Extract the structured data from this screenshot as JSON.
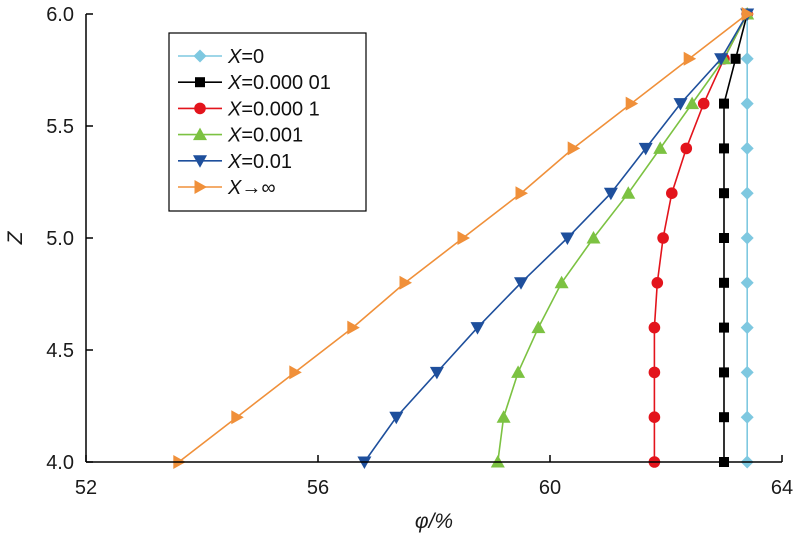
{
  "chart_data": {
    "type": "line",
    "title": "",
    "xlabel": "φ/%",
    "ylabel": "Z",
    "xlim": [
      52,
      64
    ],
    "ylim": [
      4.0,
      6.0
    ],
    "xticks": [
      52,
      56,
      60,
      64
    ],
    "xtick_labels": [
      "52",
      "56",
      "60",
      "64"
    ],
    "yticks": [
      4.0,
      4.5,
      5.0,
      5.5,
      6.0
    ],
    "ytick_labels": [
      "4.0",
      "4.5",
      "5.0",
      "5.5",
      "6.0"
    ],
    "grid": false,
    "legend_position": "top-left",
    "z": [
      4.0,
      4.2,
      4.4,
      4.6,
      4.8,
      5.0,
      5.2,
      5.4,
      5.6,
      5.8,
      6.0
    ],
    "series": [
      {
        "name": "X=0",
        "legend_italic": "X",
        "legend_rest": "=0",
        "color": "#7ec8e0",
        "marker": "diamond",
        "phi": [
          63.4,
          63.4,
          63.4,
          63.4,
          63.4,
          63.4,
          63.4,
          63.4,
          63.4,
          63.4,
          63.4
        ]
      },
      {
        "name": "X=0.000 01",
        "legend_italic": "X",
        "legend_rest": "=0.000 01",
        "color": "#000000",
        "marker": "square",
        "phi": [
          63.0,
          63.0,
          63.0,
          63.0,
          63.0,
          63.0,
          63.0,
          63.0,
          63.0,
          63.2,
          63.4
        ]
      },
      {
        "name": "X=0.000 1",
        "legend_italic": "X",
        "legend_rest": "=0.000 1",
        "color": "#e3141c",
        "marker": "circle",
        "phi": [
          61.8,
          61.8,
          61.8,
          61.8,
          61.85,
          61.95,
          62.1,
          62.35,
          62.65,
          63.0,
          63.4
        ]
      },
      {
        "name": "X=0.001",
        "legend_italic": "X",
        "legend_rest": "=0.001",
        "color": "#7cc242",
        "marker": "triangle-up",
        "phi": [
          59.1,
          59.2,
          59.45,
          59.8,
          60.2,
          60.75,
          61.35,
          61.9,
          62.45,
          63.0,
          63.4
        ]
      },
      {
        "name": "X=0.01",
        "legend_italic": "X",
        "legend_rest": "=0.01",
        "color": "#1e4f9c",
        "marker": "triangle-down",
        "phi": [
          56.8,
          57.35,
          58.05,
          58.75,
          59.5,
          60.3,
          61.05,
          61.65,
          62.25,
          62.95,
          63.4
        ]
      },
      {
        "name": "X→∞",
        "legend_italic": "X",
        "legend_rest": "→∞",
        "color": "#f0903a",
        "marker": "triangle-right",
        "phi": [
          53.6,
          54.6,
          55.6,
          56.6,
          57.5,
          58.5,
          59.5,
          60.4,
          61.4,
          62.4,
          63.4
        ]
      }
    ]
  }
}
